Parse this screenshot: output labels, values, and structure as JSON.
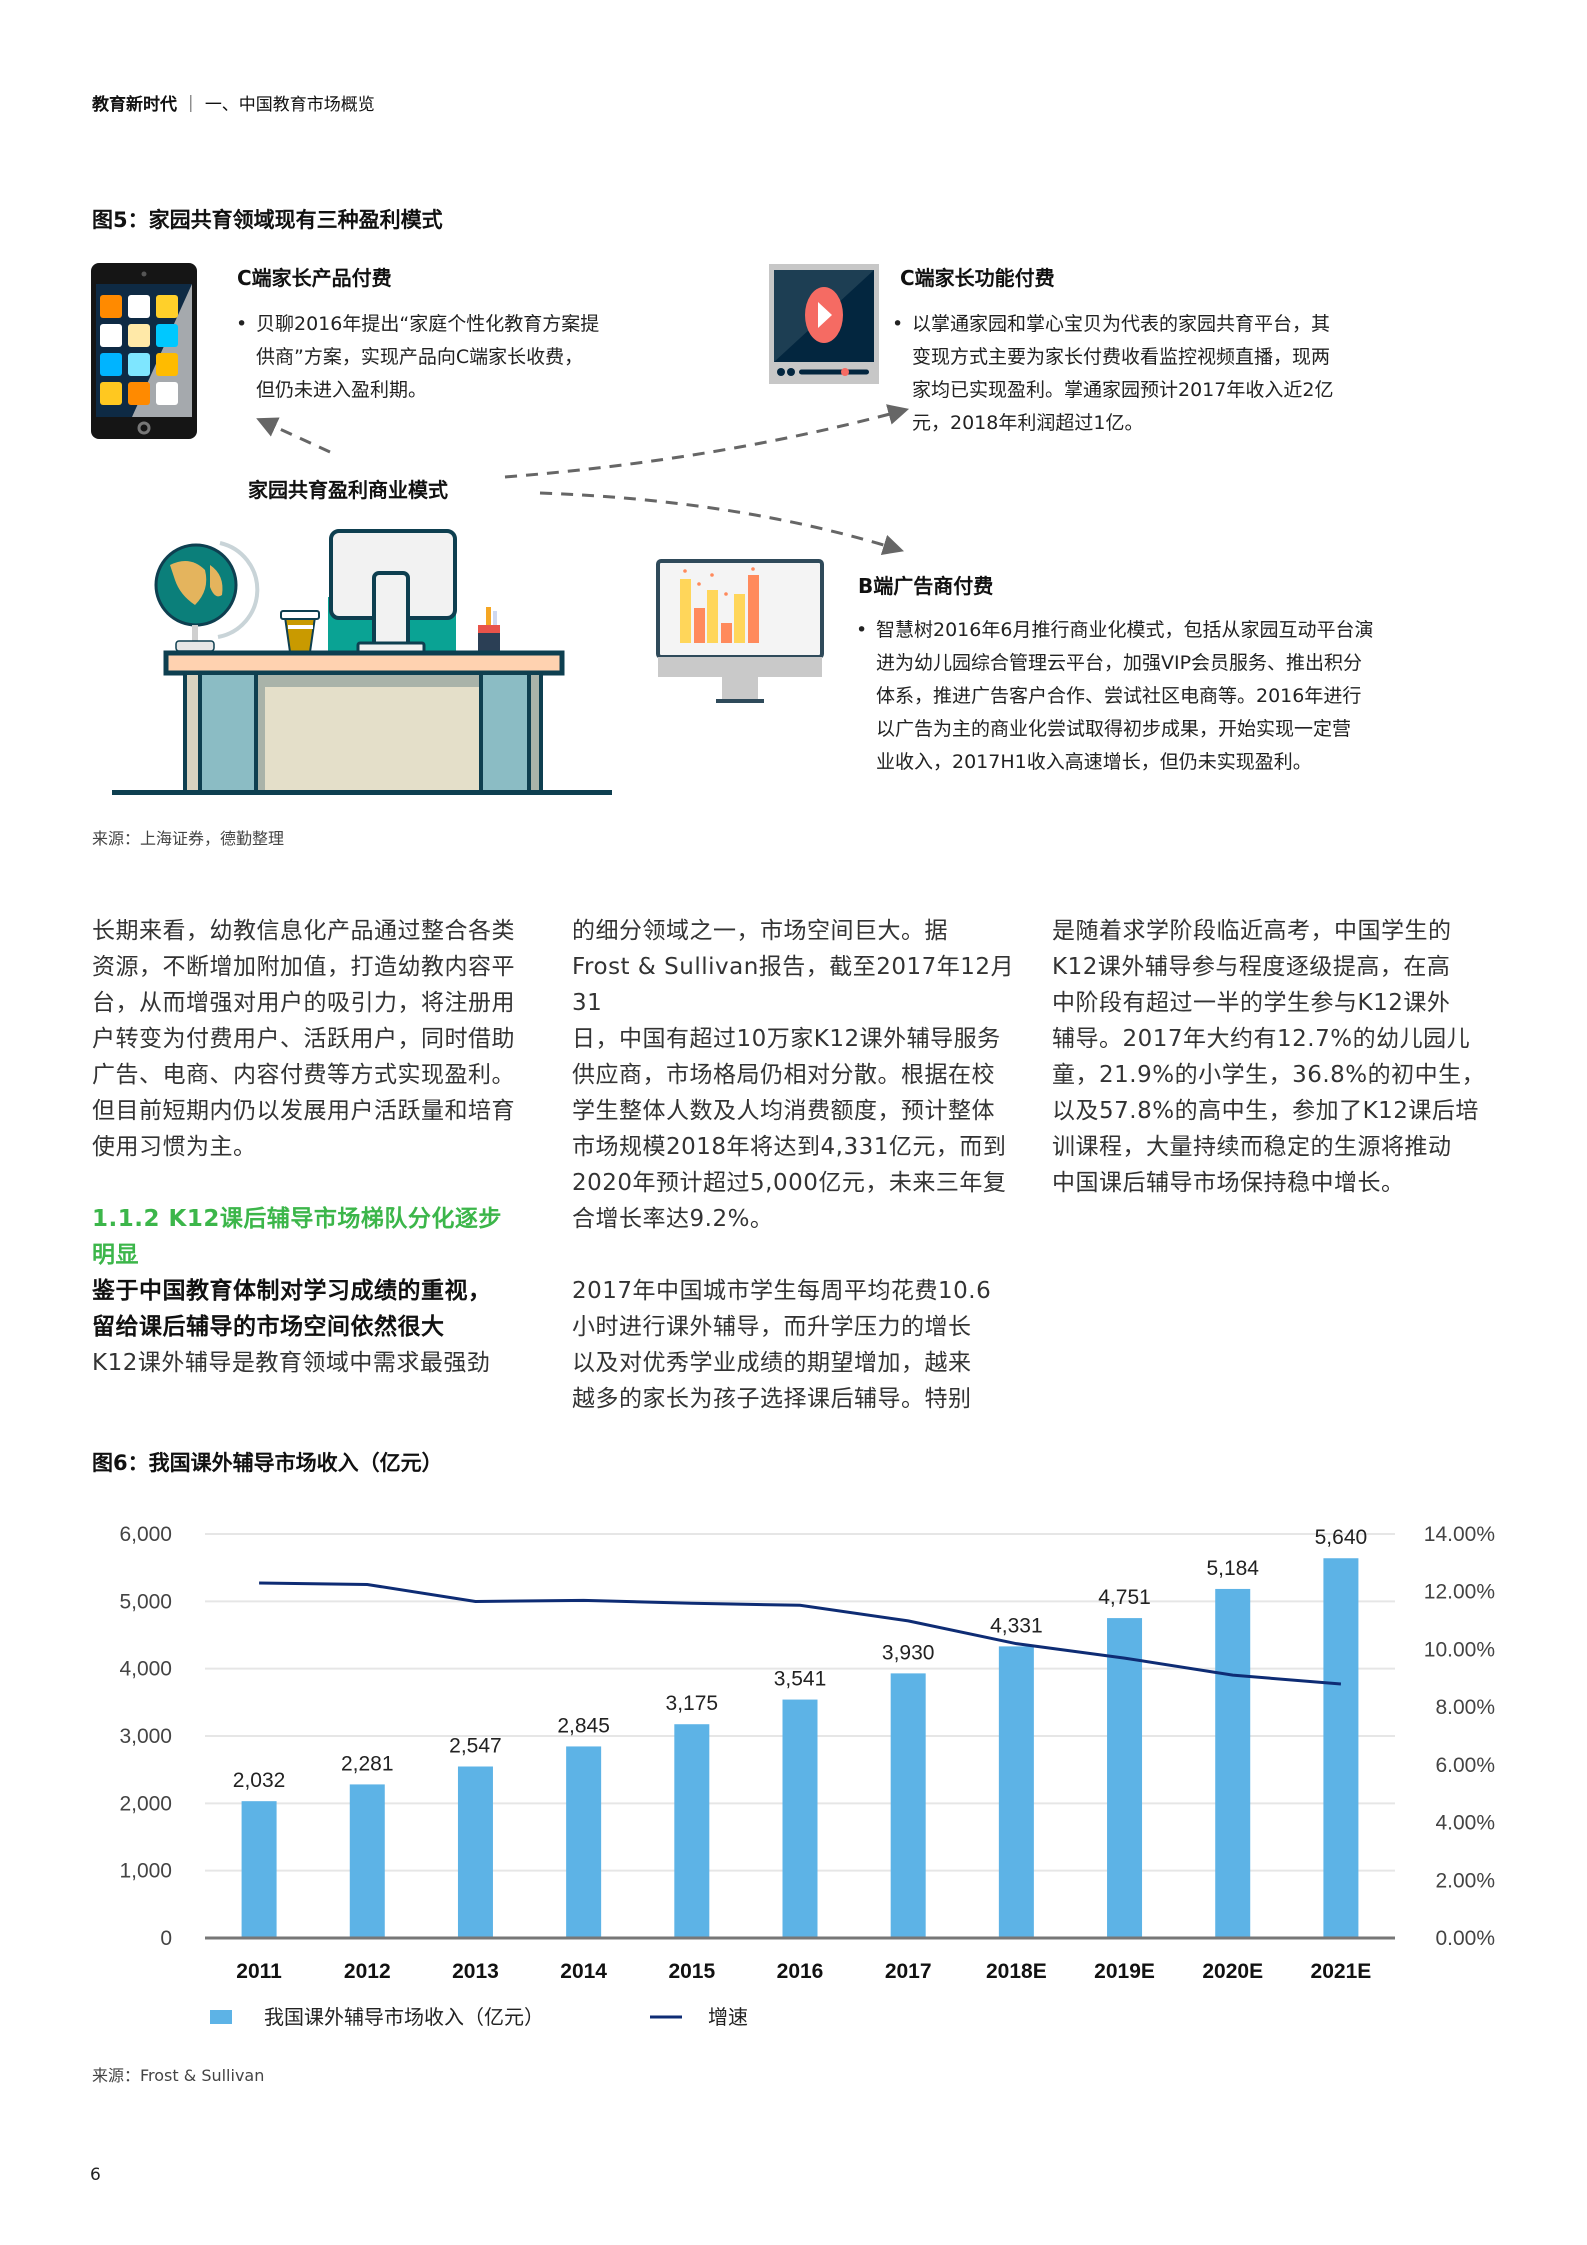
{
  "header": {
    "title_bold": "教育新时代",
    "separator": "｜",
    "section": "一、中国教育市场概览"
  },
  "figure5": {
    "title": "图5：家园共育领域现有三种盈利模式",
    "center_label": "家园共育盈利商业模式",
    "modes": [
      {
        "title": "C端家长产品付费",
        "icon": "tablet-apps-icon",
        "text": "贝聊2016年提出“家庭个性化教育方案提供商”方案，实现产品向C端家长收费，但仍未进入盈利期。",
        "lines": [
          "贝聊2016年提出“家庭个性化教育方案提",
          "供商”方案，实现产品向C端家长收费，",
          "但仍未进入盈利期。"
        ]
      },
      {
        "title": "C端家长功能付费",
        "icon": "video-player-icon",
        "lines": [
          "以掌通家园和掌心宝贝为代表的家园共育平台，其",
          "变现方式主要为家长付费收看监控视频直播，现两",
          "家均已实现盈利。掌通家园预计2017年收入近2亿",
          "元，2018年利润超过1亿。"
        ]
      },
      {
        "title": "B端广告商付费",
        "icon": "monitor-bar-chart-icon",
        "lines": [
          "智慧树2016年6月推行商业化模式，包括从家园互动平台演",
          "进为幼儿园综合管理云平台，加强VIP会员服务、推出积分",
          "体系，推进广告客户合作、尝试社区电商等。2016年进行",
          "以广告为主的商业化尝试取得初步成果，开始实现一定营",
          "业收入，2017H1收入高速增长，但仍未实现盈利。"
        ]
      }
    ],
    "illustration": "desk-with-globe-monitor-icon",
    "source": "来源：上海证券，德勤整理"
  },
  "body": {
    "col1": {
      "para": [
        "长期来看，幼教信息化产品通过整合各类",
        "资源，不断增加附加值，打造幼教内容平",
        "台，从而增强对用户的吸引力，将注册用",
        "户转变为付费用户、活跃用户，同时借助",
        "广告、电商、内容付费等方式实现盈利。",
        "但目前短期内仍以发展用户活跃量和培育",
        "使用习惯为主。"
      ],
      "heading": [
        "1.1.2 K12课后辅导市场梯队分化逐步",
        "明显"
      ],
      "subheading": [
        "鉴于中国教育体制对学习成绩的重视，",
        "留给课后辅导的市场空间依然很大"
      ],
      "tail": [
        "K12课外辅导是教育领域中需求最强劲"
      ]
    },
    "col2": {
      "para1": [
        "的细分领域之一，市场空间巨大。据",
        "Frost & Sullivan报告，截至2017年12月31",
        "日，中国有超过10万家K12课外辅导服务",
        "供应商，市场格局仍相对分散。根据在校",
        "学生整体人数及人均消费额度，预计整体",
        "市场规模2018年将达到4,331亿元，而到",
        "2020年预计超过5,000亿元，未来三年复",
        "合增长率达9.2%。"
      ],
      "para2": [
        "2017年中国城市学生每周平均花费10.6",
        "小时进行课外辅导，而升学压力的增长",
        "以及对优秀学业成绩的期望增加，越来",
        "越多的家长为孩子选择课后辅导。特别"
      ]
    },
    "col3": {
      "para": [
        "是随着求学阶段临近高考，中国学生的",
        "K12课外辅导参与程度逐级提高，在高",
        "中阶段有超过一半的学生参与K12课外",
        "辅导。2017年大约有12.7%的幼儿园儿",
        "童，21.9%的小学生，36.8%的初中生，",
        "以及57.8%的高中生，参加了K12课后培",
        "训课程，大量持续而稳定的生源将推动",
        "中国课后辅导市场保持稳中增长。"
      ]
    }
  },
  "figure6": {
    "title": "图6：我国课外辅导市场收入（亿元）",
    "source": "来源：Frost & Sullivan",
    "legend": {
      "bar": "我国课外辅导市场收入（亿元）",
      "line": "增速"
    },
    "left_ticks": [
      "0",
      "1,000",
      "2,000",
      "3,000",
      "4,000",
      "5,000",
      "6,000"
    ],
    "right_ticks": [
      "0.00%",
      "2.00%",
      "4.00%",
      "6.00%",
      "8.00%",
      "10.00%",
      "12.00%",
      "14.00%"
    ],
    "bar_labels": [
      "2,032",
      "2,281",
      "2,547",
      "2,845",
      "3,175",
      "3,541",
      "3,930",
      "4,331",
      "4,751",
      "5,184",
      "5,640"
    ]
  },
  "colors": {
    "bar": "#5db3e6",
    "line": "#0e2c74",
    "green": "#3cb64a",
    "grid": "#e6e6e6",
    "axis": "#777777"
  },
  "chart_data": {
    "type": "bar",
    "title": "图6：我国课外辅导市场收入（亿元）",
    "categories": [
      "2011",
      "2012",
      "2013",
      "2014",
      "2015",
      "2016",
      "2017",
      "2018E",
      "2019E",
      "2020E",
      "2021E"
    ],
    "series": [
      {
        "name": "我国课外辅导市场收入（亿元）",
        "type": "bar",
        "axis": "left",
        "values": [
          2032,
          2281,
          2547,
          2845,
          3175,
          3541,
          3930,
          4331,
          4751,
          5184,
          5640
        ]
      },
      {
        "name": "增速",
        "type": "line",
        "axis": "right",
        "values": [
          12.3,
          12.25,
          11.66,
          11.7,
          11.6,
          11.53,
          10.99,
          10.2,
          9.7,
          9.11,
          8.8
        ]
      }
    ],
    "xlabel": "",
    "ylabel": "",
    "ylim": [
      0,
      6000
    ],
    "y2lim": [
      0,
      14
    ],
    "y2_format": "percent",
    "grid": true,
    "legend_position": "bottom"
  },
  "page_number": "6"
}
